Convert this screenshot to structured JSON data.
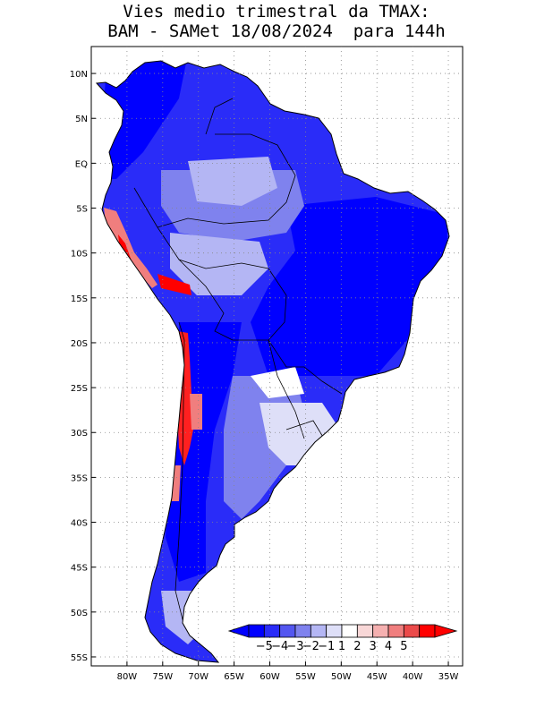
{
  "title": {
    "line1": "Vies medio trimestral da TMAX:",
    "line2": "BAM - SAMet 18/08/2024  para 144h"
  },
  "axes": {
    "lat_labels": [
      "10N",
      "5N",
      "EQ",
      "5S",
      "10S",
      "15S",
      "20S",
      "25S",
      "30S",
      "35S",
      "40S",
      "45S",
      "50S",
      "55S"
    ],
    "lat_values": [
      10,
      5,
      0,
      -5,
      -10,
      -15,
      -20,
      -25,
      -30,
      -35,
      -40,
      -45,
      -50,
      -55
    ],
    "lon_labels": [
      "80W",
      "75W",
      "70W",
      "65W",
      "60W",
      "55W",
      "50W",
      "45W",
      "40W",
      "35W"
    ],
    "lon_values": [
      -80,
      -75,
      -70,
      -65,
      -60,
      -55,
      -50,
      -45,
      -40,
      -35
    ],
    "lon_range": [
      -85,
      -33
    ],
    "lat_range": [
      -56,
      13
    ],
    "grid": "dotted"
  },
  "colorbar": {
    "labels": [
      "-5",
      "-4",
      "-3",
      "-2",
      "-1",
      "1",
      "2",
      "3",
      "4",
      "5"
    ],
    "colors": [
      "#0000ff",
      "#2a2cf8",
      "#5356f0",
      "#7f82ee",
      "#b4b6f4",
      "#dedff8",
      "#ffffff",
      "#f8d7d7",
      "#f5b0b0",
      "#f07e7e",
      "#eb4a4a",
      "#ff0000"
    ],
    "position": "bottom-right-inside"
  },
  "colors": {
    "strong_negative": "#0000ff",
    "mid_negative": "#5356f0",
    "weak_negative": "#b4b6f4",
    "positive": "#ff2020"
  }
}
